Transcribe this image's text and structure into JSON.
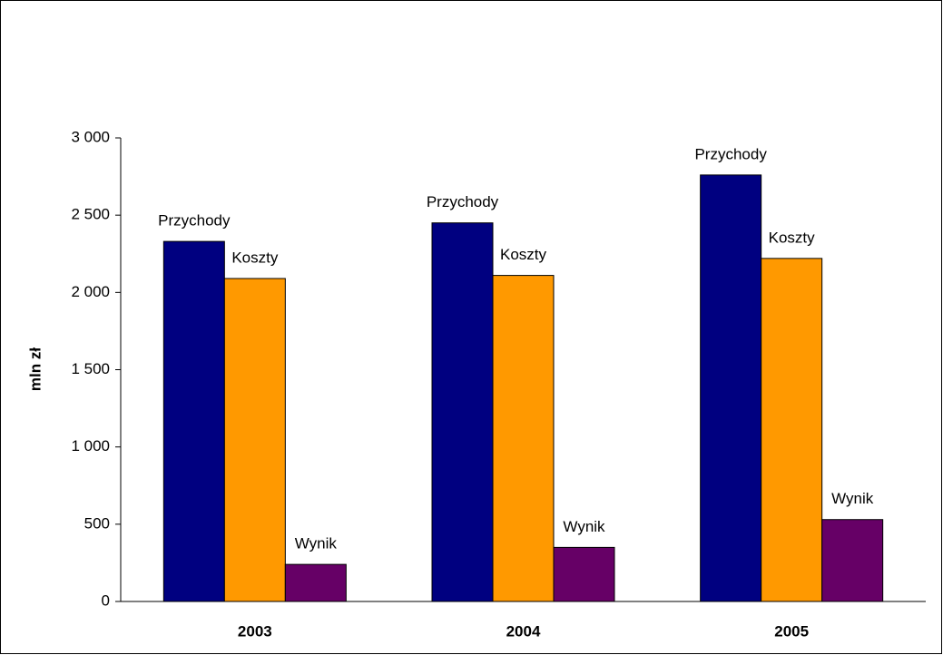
{
  "chart_data": {
    "type": "bar",
    "y_label": "mln zł",
    "categories": [
      "2003",
      "2004",
      "2005"
    ],
    "series": [
      {
        "name": "Przychody",
        "color": "#000080",
        "values": [
          2330,
          2450,
          2760
        ]
      },
      {
        "name": "Koszty",
        "color": "#ff9900",
        "values": [
          2090,
          2110,
          2220
        ]
      },
      {
        "name": "Wynik",
        "color": "#660066",
        "values": [
          240,
          350,
          530
        ]
      }
    ],
    "ylim": [
      0,
      3000
    ],
    "yticks": [
      0,
      500,
      {
        "value": 1000,
        "label": "1 000"
      },
      {
        "value": 1500,
        "label": "1 500"
      },
      {
        "value": 2000,
        "label": "2 000"
      },
      {
        "value": 2500,
        "label": "2 500"
      },
      {
        "value": 3000,
        "label": "3 000"
      }
    ],
    "grid": false
  }
}
